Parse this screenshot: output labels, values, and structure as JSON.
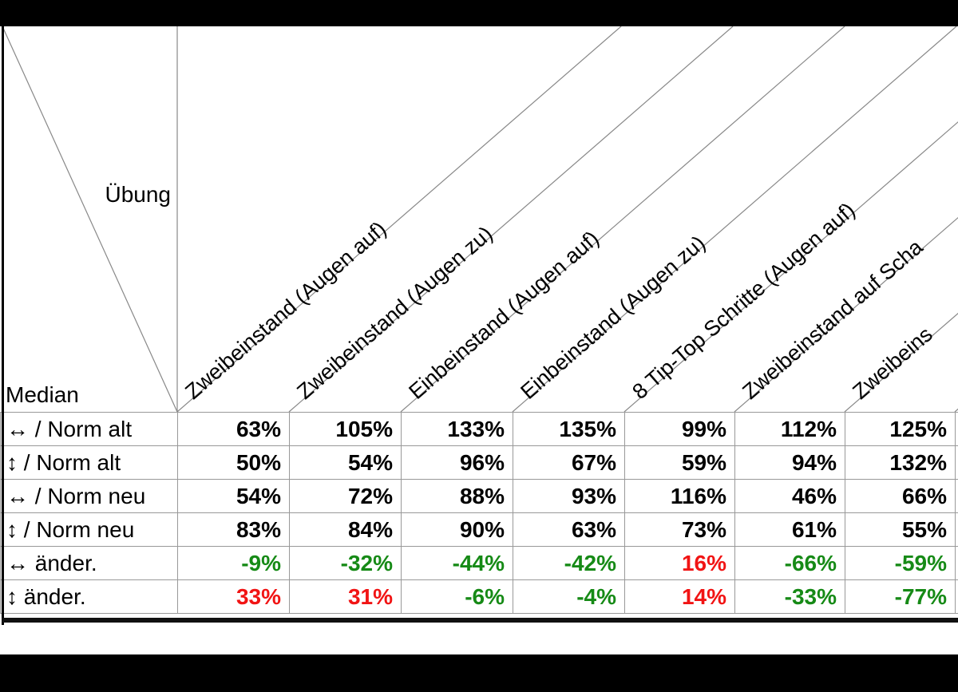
{
  "table": {
    "corner": {
      "top_right_label": "Übung",
      "bottom_left_label": "Median"
    },
    "column_headers": [
      "Zweibeinstand (Augen auf)",
      "Zweibeinstand (Augen zu)",
      "Einbeinstand (Augen auf)",
      "Einbeinstand (Augen zu)",
      "8 Tip-Top Schritte (Augen auf)",
      "Zweibeinstand auf Scha",
      "Zweibeins"
    ],
    "rows": [
      {
        "label": "↔ / Norm alt",
        "values": [
          "63%",
          "105%",
          "133%",
          "135%",
          "99%",
          "112%",
          "125%"
        ],
        "value_colors": [
          "black",
          "black",
          "black",
          "black",
          "black",
          "black",
          "black"
        ]
      },
      {
        "label": "↕ / Norm alt",
        "values": [
          "50%",
          "54%",
          "96%",
          "67%",
          "59%",
          "94%",
          "132%"
        ],
        "value_colors": [
          "black",
          "black",
          "black",
          "black",
          "black",
          "black",
          "black"
        ]
      },
      {
        "label": "↔ / Norm neu",
        "values": [
          "54%",
          "72%",
          "88%",
          "93%",
          "116%",
          "46%",
          "66%"
        ],
        "value_colors": [
          "black",
          "black",
          "black",
          "black",
          "black",
          "black",
          "black"
        ]
      },
      {
        "label": "↕ / Norm neu",
        "values": [
          "83%",
          "84%",
          "90%",
          "63%",
          "73%",
          "61%",
          "55%"
        ],
        "value_colors": [
          "black",
          "black",
          "black",
          "black",
          "black",
          "black",
          "black"
        ]
      },
      {
        "label": "↔ änder.",
        "values": [
          "-9%",
          "-32%",
          "-44%",
          "-42%",
          "16%",
          "-66%",
          "-59%"
        ],
        "value_colors": [
          "green",
          "green",
          "green",
          "green",
          "red",
          "green",
          "green"
        ]
      },
      {
        "label": "↕ änder.",
        "values": [
          "33%",
          "31%",
          "-6%",
          "-4%",
          "14%",
          "-33%",
          "-77%"
        ],
        "value_colors": [
          "red",
          "red",
          "green",
          "green",
          "red",
          "green",
          "green"
        ]
      }
    ]
  },
  "colors": {
    "increase_red": "#f11414",
    "decrease_green": "#168a16",
    "grid_line": "#999999",
    "header_line": "#888888"
  },
  "chart_data": {
    "type": "table",
    "corner_labels": [
      "Übung",
      "Median"
    ],
    "columns": [
      "Zweibeinstand (Augen auf)",
      "Zweibeinstand (Augen zu)",
      "Einbeinstand (Augen auf)",
      "Einbeinstand (Augen zu)",
      "8 Tip-Top Schritte (Augen auf)",
      "Zweibeinstand auf Scha",
      "Zweibeins"
    ],
    "rows": [
      {
        "name": "↔ / Norm alt",
        "values_percent": [
          63,
          105,
          133,
          135,
          99,
          112,
          125
        ]
      },
      {
        "name": "↕ / Norm alt",
        "values_percent": [
          50,
          54,
          96,
          67,
          59,
          94,
          132
        ]
      },
      {
        "name": "↔ / Norm neu",
        "values_percent": [
          54,
          72,
          88,
          93,
          116,
          46,
          66
        ]
      },
      {
        "name": "↕ / Norm neu",
        "values_percent": [
          83,
          84,
          90,
          63,
          73,
          61,
          55
        ]
      },
      {
        "name": "↔ änder.",
        "values_percent": [
          -9,
          -32,
          -44,
          -42,
          16,
          -66,
          -59
        ]
      },
      {
        "name": "↕ änder.",
        "values_percent": [
          33,
          31,
          -6,
          -4,
          14,
          -33,
          -77
        ]
      }
    ]
  }
}
